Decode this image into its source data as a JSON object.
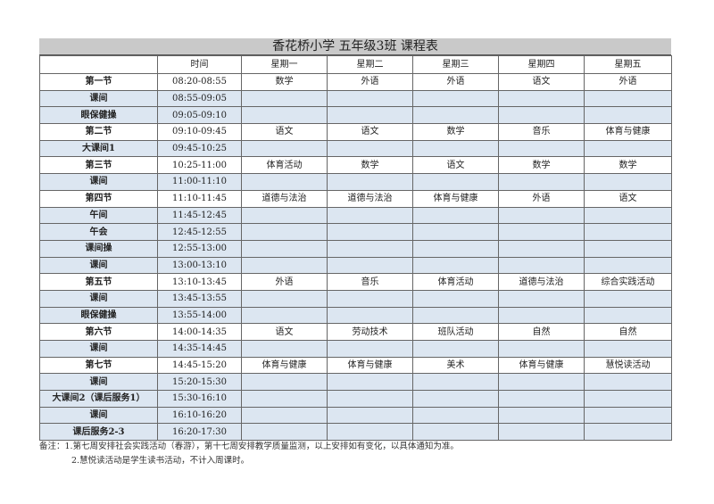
{
  "title": "香花桥小学  五年级3班  课程表",
  "headers": [
    "",
    "时间",
    "星期一",
    "星期二",
    "星期三",
    "星期四",
    "星期五"
  ],
  "rows": [
    {
      "name": "第一节",
      "time": "08:20-08:55",
      "blue": false,
      "cells": [
        "数学",
        "外语",
        "外语",
        "语文",
        "外语"
      ]
    },
    {
      "name": "课间",
      "time": "08:55-09:05",
      "blue": true,
      "cells": [
        "",
        "",
        "",
        "",
        ""
      ]
    },
    {
      "name": "眼保健操",
      "time": "09:05-09:10",
      "blue": true,
      "cells": [
        "",
        "",
        "",
        "",
        ""
      ]
    },
    {
      "name": "第二节",
      "time": "09:10-09:45",
      "blue": false,
      "cells": [
        "语文",
        "语文",
        "数学",
        "音乐",
        "体育与健康"
      ]
    },
    {
      "name": "大课间1",
      "time": "09:45-10:25",
      "blue": true,
      "cells": [
        "",
        "",
        "",
        "",
        ""
      ]
    },
    {
      "name": "第三节",
      "time": "10:25-11:00",
      "blue": false,
      "cells": [
        "体育活动",
        "数学",
        "语文",
        "数学",
        "数学"
      ]
    },
    {
      "name": "课间",
      "time": "11:00-11:10",
      "blue": true,
      "cells": [
        "",
        "",
        "",
        "",
        ""
      ]
    },
    {
      "name": "第四节",
      "time": "11:10-11:45",
      "blue": false,
      "cells": [
        "道德与法治",
        "道德与法治",
        "体育与健康",
        "外语",
        "语文"
      ]
    },
    {
      "name": "午间",
      "time": "11:45-12:45",
      "blue": true,
      "cells": [
        "",
        "",
        "",
        "",
        ""
      ]
    },
    {
      "name": "午会",
      "time": "12:45-12:55",
      "blue": true,
      "cells": [
        "",
        "",
        "",
        "",
        ""
      ]
    },
    {
      "name": "课间操",
      "time": "12:55-13:00",
      "blue": true,
      "cells": [
        "",
        "",
        "",
        "",
        ""
      ]
    },
    {
      "name": "课间",
      "time": "13:00-13:10",
      "blue": true,
      "cells": [
        "",
        "",
        "",
        "",
        ""
      ]
    },
    {
      "name": "第五节",
      "time": "13:10-13:45",
      "blue": false,
      "cells": [
        "外语",
        "音乐",
        "体育活动",
        "道德与法治",
        "综合实践活动"
      ]
    },
    {
      "name": "课间",
      "time": "13:45-13:55",
      "blue": true,
      "cells": [
        "",
        "",
        "",
        "",
        ""
      ]
    },
    {
      "name": "眼保健操",
      "time": "13:55-14:00",
      "blue": true,
      "cells": [
        "",
        "",
        "",
        "",
        ""
      ]
    },
    {
      "name": "第六节",
      "time": "14:00-14:35",
      "blue": false,
      "cells": [
        "语文",
        "劳动技术",
        "班队活动",
        "自然",
        "自然"
      ]
    },
    {
      "name": "课间",
      "time": "14:35-14:45",
      "blue": true,
      "cells": [
        "",
        "",
        "",
        "",
        ""
      ]
    },
    {
      "name": "第七节",
      "time": "14:45-15:20",
      "blue": false,
      "cells": [
        "体育与健康",
        "体育与健康",
        "美术",
        "体育与健康",
        "慧悦读活动"
      ]
    },
    {
      "name": "课间",
      "time": "15:20-15:30",
      "blue": true,
      "cells": [
        "",
        "",
        "",
        "",
        ""
      ]
    },
    {
      "name": "大课间2（课后服务1）",
      "time": "15:30-16:10",
      "blue": true,
      "cells": [
        "",
        "",
        "",
        "",
        ""
      ]
    },
    {
      "name": "课间",
      "time": "16:10-16:20",
      "blue": true,
      "cells": [
        "",
        "",
        "",
        "",
        ""
      ]
    },
    {
      "name": "课后服务2-3",
      "time": "16:20-17:30",
      "blue": true,
      "cells": [
        "",
        "",
        "",
        "",
        ""
      ]
    }
  ],
  "notes": [
    "备注：1.第七周安排社会实践活动（春游），第十七周安排教学质量监测，以上安排如有变化，以具体通知为准。",
    "2.慧悦读活动是学生读书活动，不计入周课时。"
  ],
  "colors": {
    "row_highlight": "#dce6f1",
    "title_bar": "#c9c9c9"
  }
}
